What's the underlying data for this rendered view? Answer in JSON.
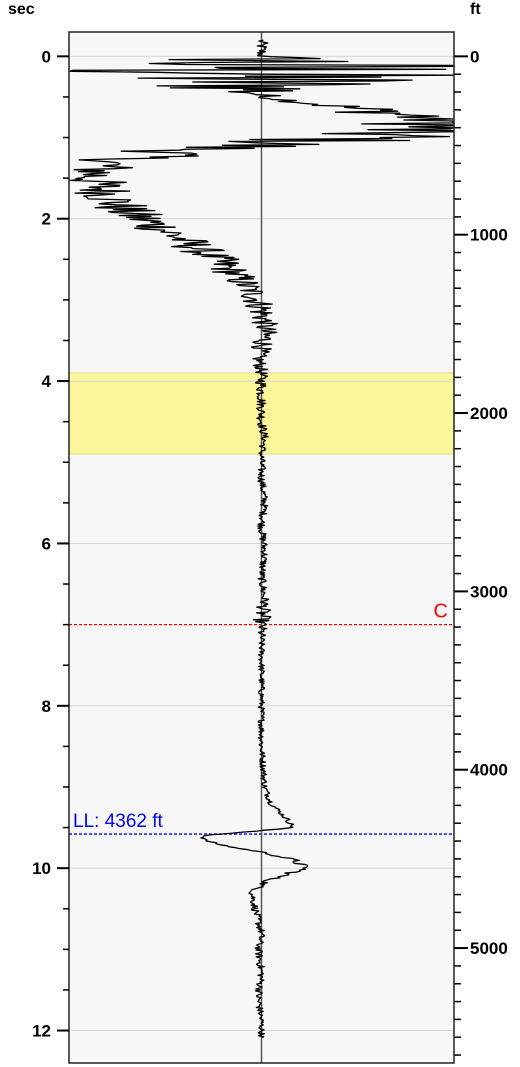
{
  "chart_data": {
    "type": "line",
    "left_axis": {
      "unit": "sec",
      "ticks": [
        0,
        2,
        4,
        6,
        8,
        10,
        12
      ]
    },
    "right_axis": {
      "unit": "ft",
      "ticks": [
        0,
        1000,
        2000,
        3000,
        4000,
        5000
      ]
    },
    "ylim_sec": [
      -0.3,
      12.4
    ],
    "feet_per_sec": 455.2,
    "grid": true,
    "highlight_band": {
      "from_sec": 3.9,
      "to_sec": 4.9,
      "color": "#faf69a"
    },
    "markers": [
      {
        "name": "C",
        "label": "C",
        "sec": 7.0,
        "color": "#ff0000"
      },
      {
        "name": "LL",
        "label": "LL: 4362 ft",
        "sec": 9.58,
        "color": "#0000ff"
      }
    ],
    "series": [
      {
        "x": [
          0,
          0.1,
          0.2,
          0.5,
          0.8,
          1.0,
          1.15,
          1.3,
          1.5,
          1.7,
          1.9,
          2.1,
          2.3,
          2.5,
          2.7,
          2.9,
          3.1,
          3.3,
          3.5,
          3.7,
          3.9,
          4.1,
          4.3,
          4.5,
          4.7,
          4.9,
          5.2,
          5.5,
          5.8,
          6.1,
          6.4,
          6.7,
          6.9,
          7.0,
          7.2,
          7.5,
          8.0,
          8.5,
          9.0,
          9.2,
          9.4,
          9.5,
          9.6,
          9.65,
          9.7,
          9.75,
          9.8,
          9.9,
          10.0,
          10.05,
          10.15,
          10.3,
          10.5,
          10.8,
          11.0,
          11.3,
          11.6,
          11.9,
          12.1
        ],
        "amp": [
          0,
          0,
          0,
          0,
          0.62,
          0.32,
          -0.22,
          -0.48,
          -0.53,
          -0.48,
          -0.43,
          -0.32,
          -0.23,
          -0.14,
          -0.08,
          -0.03,
          0.0,
          0.01,
          0.01,
          -0.01,
          0.0,
          0.0,
          0.0,
          0.0,
          0.01,
          0.0,
          0.0,
          0.01,
          0.0,
          0.01,
          0.0,
          0.01,
          0.0,
          0.0,
          0.0,
          0.0,
          0.0,
          0.0,
          0.01,
          0.03,
          0.08,
          0.1,
          -0.18,
          -0.18,
          -0.14,
          -0.08,
          0.0,
          0.1,
          0.14,
          0.1,
          0.02,
          -0.03,
          -0.02,
          0.0,
          -0.01,
          0.0,
          -0.01,
          0.0,
          0.0
        ],
        "noise": [
          0.02,
          0.9,
          0.9,
          0.02,
          0.25,
          0.35,
          0.2,
          0.12,
          0.1,
          0.1,
          0.1,
          0.09,
          0.08,
          0.07,
          0.06,
          0.05,
          0.05,
          0.04,
          0.04,
          0.025,
          0.02,
          0.018,
          0.015,
          0.015,
          0.012,
          0.012,
          0.012,
          0.012,
          0.012,
          0.012,
          0.012,
          0.015,
          0.03,
          0.02,
          0.01,
          0.01,
          0.01,
          0.01,
          0.01,
          0.01,
          0.01,
          0.01,
          0.01,
          0.01,
          0.01,
          0.01,
          0.01,
          0.02,
          0.02,
          0.02,
          0.015,
          0.012,
          0.012,
          0.012,
          0.012,
          0.012,
          0.012,
          0.01,
          0.01
        ]
      }
    ]
  }
}
